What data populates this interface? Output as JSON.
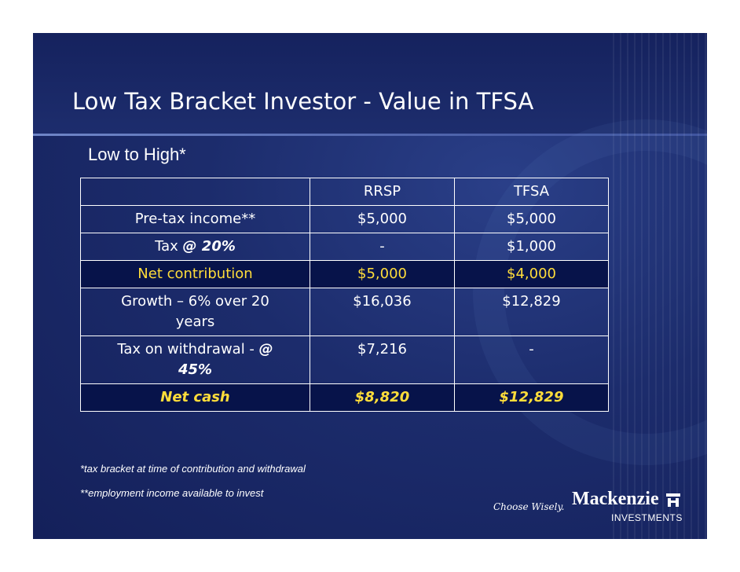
{
  "slide": {
    "title": "Low Tax Bracket Investor - Value in TFSA",
    "subtitle": "Low to High*"
  },
  "table": {
    "headers": [
      "",
      "RRSP",
      "TFSA"
    ],
    "rows": {
      "pretax": {
        "label": "Pre-tax income**",
        "rrsp": "$5,000",
        "tfsa": "$5,000"
      },
      "tax": {
        "label": "Tax ",
        "label_emph": "@ 20%",
        "rrsp": "-",
        "tfsa": "$1,000"
      },
      "net_contribution": {
        "label": "Net contribution",
        "rrsp": "$5,000",
        "tfsa": "$4,000"
      },
      "growth": {
        "label": "Growth – 6% over 20 years",
        "rrsp": "$16,036",
        "tfsa": "$12,829"
      },
      "withdrawal_tax": {
        "label": "Tax on withdrawal - ",
        "label_emph": "@ 45%",
        "rrsp": "$7,216",
        "tfsa": "-"
      },
      "net_cash": {
        "label": "Net cash",
        "rrsp": "$8,820",
        "tfsa": "$12,829"
      }
    }
  },
  "footnotes": {
    "tax_bracket": "*tax bracket at time of contribution and withdrawal",
    "employment": "**employment income available to invest"
  },
  "branding": {
    "slogan": "Choose Wisely.",
    "name": "Mackenzie",
    "sub": "INVESTMENTS"
  },
  "colors": {
    "background": "#1c2c6c",
    "highlight_text": "#ffdd3a",
    "highlight_row": "#07134a"
  }
}
